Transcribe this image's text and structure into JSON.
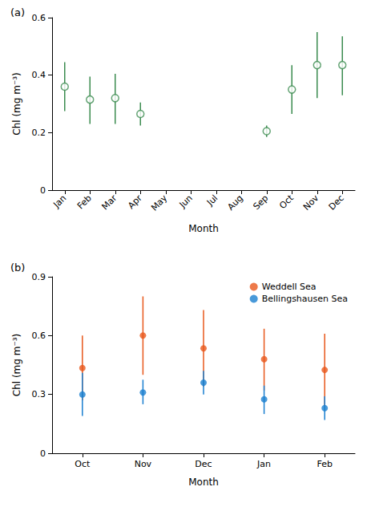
{
  "chart_data": [
    {
      "type": "scatter",
      "title": "(a)",
      "x_label": "Month",
      "y_label": "Chl (mg m⁻³)",
      "categories": [
        "Jan",
        "Feb",
        "Mar",
        "Apr",
        "May",
        "Jun",
        "Jul",
        "Aug",
        "Sep",
        "Oct",
        "Nov",
        "Dec"
      ],
      "ylim": [
        0,
        0.6
      ],
      "yticks": [
        0,
        0.2,
        0.4,
        0.6
      ],
      "grid": false,
      "series": [
        {
          "color": "#3c8c50",
          "marker": "open_circle",
          "values": [
            0.36,
            0.315,
            0.32,
            0.265,
            null,
            null,
            null,
            null,
            0.205,
            0.35,
            0.435,
            0.435
          ],
          "error_low": [
            0.275,
            0.23,
            0.23,
            0.225,
            null,
            null,
            null,
            null,
            0.185,
            0.265,
            0.32,
            0.33
          ],
          "error_high": [
            0.445,
            0.395,
            0.405,
            0.305,
            null,
            null,
            null,
            null,
            0.225,
            0.435,
            0.55,
            0.535
          ]
        }
      ]
    },
    {
      "type": "scatter",
      "title": "(b)",
      "x_label": "Month",
      "y_label": "Chl (mg m⁻³)",
      "categories": [
        "Oct",
        "Nov",
        "Dec",
        "Jan",
        "Feb"
      ],
      "ylim": [
        0,
        0.9
      ],
      "yticks": [
        0,
        0.3,
        0.6,
        0.9
      ],
      "grid": false,
      "legend": "upper right",
      "series": [
        {
          "name": "Weddell Sea",
          "color": "#e8581c",
          "marker": "circle",
          "values": [
            0.435,
            0.6,
            0.535,
            0.48,
            0.425
          ],
          "error_low": [
            0.27,
            0.4,
            0.34,
            0.32,
            0.24
          ],
          "error_high": [
            0.6,
            0.8,
            0.73,
            0.635,
            0.61
          ]
        },
        {
          "name": "Bellingshausen Sea",
          "color": "#1a7fd0",
          "marker": "circle",
          "values": [
            0.3,
            0.31,
            0.36,
            0.275,
            0.23
          ],
          "error_low": [
            0.19,
            0.25,
            0.3,
            0.2,
            0.17
          ],
          "error_high": [
            0.41,
            0.375,
            0.42,
            0.345,
            0.29
          ]
        }
      ]
    }
  ]
}
